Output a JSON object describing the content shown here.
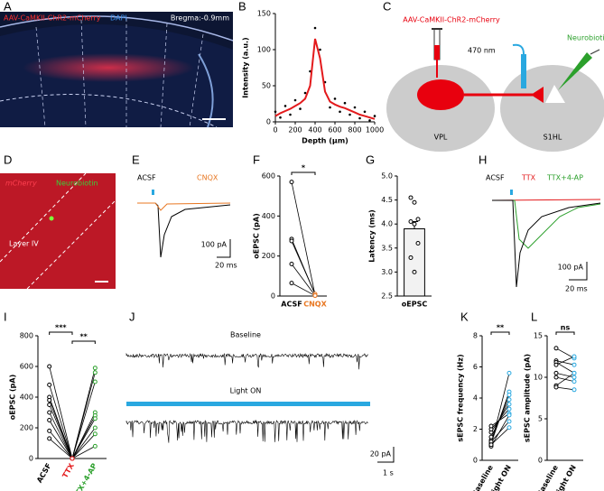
{
  "panel_labels": [
    "A",
    "B",
    "C",
    "D",
    "E",
    "F",
    "G",
    "H",
    "I",
    "J",
    "K",
    "L"
  ],
  "image_a": {
    "label": "AAV-CaMKII-ChR2-mCherry",
    "dapi": "DAPI",
    "bregma": "Bregma:-0.9mm"
  },
  "diagram_c": {
    "virus": "AAV-CaMKII-ChR2-mCherry",
    "light": "470 nm",
    "tracer": "Neurobiotin",
    "source": "VPL",
    "target": "S1HL"
  },
  "image_d": {
    "mcherry": "mCherry",
    "neurobiotin": "Neurobiotin",
    "layer": "Layer IV"
  },
  "traces_e": {
    "legend": [
      "ACSF",
      "CNQX"
    ],
    "scale_y": "100 pA",
    "scale_x": "20 ms"
  },
  "traces_h": {
    "legend": [
      "ACSF",
      "TTX",
      "TTX+4-AP"
    ],
    "scale_y": "100 pA",
    "scale_x": "20 ms"
  },
  "traces_j": {
    "labels": [
      "Baseline",
      "Light ON"
    ],
    "scale_y": "20 pA",
    "scale_x": "1 s"
  },
  "chart_data": [
    {
      "type": "line",
      "xlabel": "Depth (μm)",
      "ylabel": "Intensity (a.u.)",
      "x": [
        0,
        50,
        100,
        150,
        200,
        250,
        300,
        350,
        400,
        450,
        500,
        550,
        600,
        650,
        700,
        750,
        800,
        850,
        900,
        950,
        1000
      ],
      "series": [
        {
          "color": "#000000",
          "style": "dots",
          "values": [
            14,
            6,
            22,
            10,
            30,
            18,
            40,
            70,
            130,
            100,
            55,
            20,
            32,
            14,
            26,
            10,
            20,
            5,
            14,
            2,
            8
          ]
        },
        {
          "color": "#e31a1c",
          "style": "line",
          "values": [
            8,
            12,
            15,
            18,
            22,
            26,
            32,
            50,
            115,
            88,
            42,
            28,
            24,
            21,
            19,
            16,
            13,
            10,
            8,
            6,
            4
          ]
        }
      ],
      "xlim": [
        0,
        1000
      ],
      "ylim": [
        0,
        150
      ],
      "xticks": [
        0,
        200,
        400,
        600,
        800,
        1000
      ],
      "yticks": [
        0,
        50,
        100,
        150
      ]
    },
    {
      "type": "paired",
      "ylabel": "oEPSC (pA)",
      "categories": [
        "ACSF",
        "CNQX"
      ],
      "category_colors": [
        "#000000",
        "#e87722"
      ],
      "point_colors": [
        "#000000",
        "#e87722"
      ],
      "series": [
        {
          "values": [
            570,
            5
          ]
        },
        {
          "values": [
            285,
            8
          ]
        },
        {
          "values": [
            275,
            10
          ]
        },
        {
          "values": [
            160,
            3
          ]
        },
        {
          "values": [
            65,
            2
          ]
        }
      ],
      "ylim": [
        0,
        600
      ],
      "yticks": [
        0,
        200,
        400,
        600
      ],
      "significance": [
        {
          "from": 0,
          "to": 1,
          "label": "*"
        }
      ]
    },
    {
      "type": "bar_points",
      "ylabel": "Latency (ms)",
      "categories": [
        "oEPSC"
      ],
      "values": [
        3.9
      ],
      "errors": [
        0.15
      ],
      "points": [
        4.55,
        4.45,
        4.1,
        4.05,
        4.0,
        3.6,
        3.3,
        3.0
      ],
      "color": "#f2f2f2",
      "ylim": [
        2.5,
        5
      ],
      "yticks": [
        2.5,
        {
          "value": 3,
          "label": "3.0"
        },
        3.5,
        {
          "value": 4,
          "label": "4.0"
        },
        4.5,
        {
          "value": 5,
          "label": "5.0"
        }
      ]
    },
    {
      "type": "paired",
      "ylabel": "oEPSC (pA)",
      "categories": [
        "ACSF",
        "TTX",
        "TTX+4-AP"
      ],
      "category_colors": [
        "#000000",
        "#e31a1c",
        "#2ca02c"
      ],
      "point_colors": [
        "#000000",
        "#e31a1c",
        "#2ca02c"
      ],
      "series": [
        {
          "values": [
            600,
            0,
            590
          ]
        },
        {
          "values": [
            480,
            0,
            560
          ]
        },
        {
          "values": [
            400,
            0,
            500
          ]
        },
        {
          "values": [
            380,
            0,
            300
          ]
        },
        {
          "values": [
            350,
            0,
            280
          ]
        },
        {
          "values": [
            300,
            0,
            260
          ]
        },
        {
          "values": [
            250,
            0,
            200
          ]
        },
        {
          "values": [
            180,
            0,
            160
          ]
        },
        {
          "values": [
            130,
            0,
            80
          ]
        }
      ],
      "ylim": [
        0,
        800
      ],
      "yticks": [
        0,
        200,
        400,
        600,
        800
      ],
      "significance": [
        {
          "from": 0,
          "to": 1,
          "label": "***"
        },
        {
          "from": 1,
          "to": 2,
          "label": "**"
        }
      ]
    },
    {
      "type": "paired",
      "ylabel": "sEPSC frequency (Hz)",
      "categories": [
        "Baseline",
        "Light ON"
      ],
      "category_colors": [
        "#000000",
        "#000000"
      ],
      "point_colors": [
        "#000000",
        "#29a8e0"
      ],
      "series": [
        {
          "values": [
            1.0,
            5.6
          ]
        },
        {
          "values": [
            1.1,
            4.4
          ]
        },
        {
          "values": [
            1.3,
            4.2
          ]
        },
        {
          "values": [
            1.5,
            3.9
          ]
        },
        {
          "values": [
            1.8,
            3.6
          ]
        },
        {
          "values": [
            2.0,
            3.3
          ]
        },
        {
          "values": [
            2.2,
            3.0
          ]
        },
        {
          "values": [
            0.9,
            2.9
          ]
        },
        {
          "values": [
            1.2,
            2.5
          ]
        },
        {
          "values": [
            1.0,
            2.1
          ]
        }
      ],
      "ylim": [
        0,
        8
      ],
      "yticks": [
        0,
        2,
        4,
        6,
        8
      ],
      "significance": [
        {
          "from": 0,
          "to": 1,
          "label": "**"
        }
      ]
    },
    {
      "type": "paired",
      "ylabel": "sEPSC amplitude (pA)",
      "categories": [
        "Baseline",
        "Light ON"
      ],
      "category_colors": [
        "#000000",
        "#000000"
      ],
      "point_colors": [
        "#000000",
        "#29a8e0"
      ],
      "series": [
        {
          "values": [
            13.5,
            12.3
          ]
        },
        {
          "values": [
            12.0,
            11.5
          ]
        },
        {
          "values": [
            11.8,
            10.5
          ]
        },
        {
          "values": [
            11.5,
            12.5
          ]
        },
        {
          "values": [
            10.5,
            10.0
          ]
        },
        {
          "values": [
            10.0,
            9.5
          ]
        },
        {
          "values": [
            9.0,
            10.5
          ]
        },
        {
          "values": [
            8.8,
            8.5
          ]
        }
      ],
      "ylim": [
        0,
        15
      ],
      "yticks": [
        0,
        5,
        10,
        15
      ],
      "significance": [
        {
          "from": 0,
          "to": 1,
          "label": "ns"
        }
      ]
    }
  ]
}
